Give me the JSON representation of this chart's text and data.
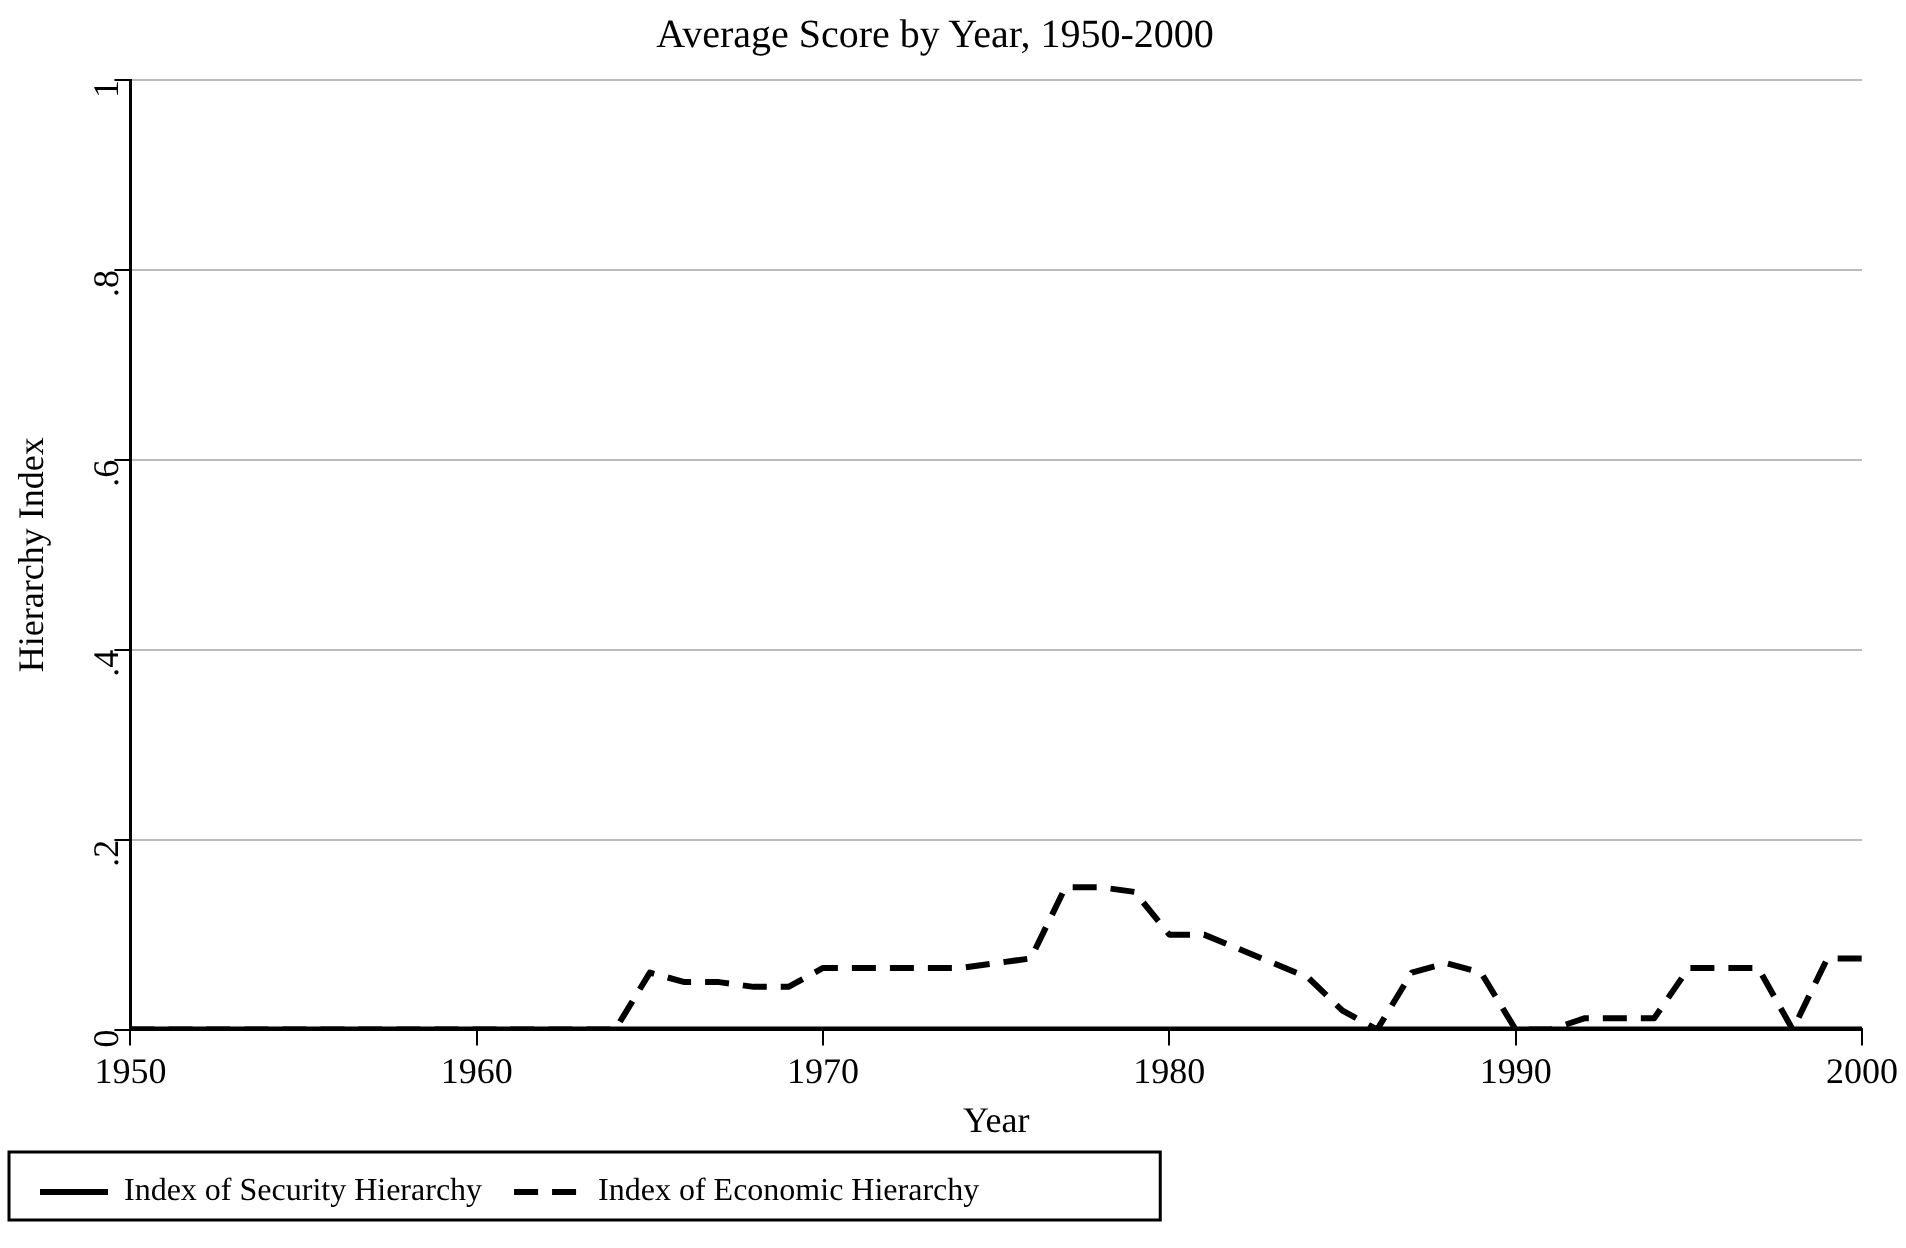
{
  "chart_data": {
    "type": "line",
    "title": "Average Score by Year, 1950-2000",
    "xlabel": "Year",
    "ylabel": "Hierarchy Index",
    "xlim": [
      1950,
      2000
    ],
    "xticks": [
      1950,
      1960,
      1970,
      1980,
      1990,
      2000
    ],
    "ylim": [
      0,
      1
    ],
    "yticks": [
      0,
      {
        "value": 0.2,
        "label": ".2"
      },
      {
        "value": 0.4,
        "label": ".4"
      },
      {
        "value": 0.6,
        "label": ".6"
      },
      {
        "value": 0.8,
        "label": ".8"
      },
      1
    ],
    "grid": "y",
    "legend": "bottom",
    "marker": "none",
    "series": [
      {
        "name": "Index of Security Hierarchy",
        "color": "#000000",
        "line_style": "solid",
        "x": [
          1950,
          2000
        ],
        "values": [
          0,
          0
        ]
      },
      {
        "name": "Index of Economic Hierarchy",
        "color": "#000000",
        "line_style": "dashed",
        "x": [
          1950,
          1951,
          1952,
          1953,
          1954,
          1955,
          1956,
          1957,
          1958,
          1959,
          1960,
          1961,
          1962,
          1963,
          1964,
          1965,
          1966,
          1967,
          1968,
          1969,
          1970,
          1971,
          1972,
          1973,
          1974,
          1975,
          1976,
          1977,
          1978,
          1979,
          1980,
          1981,
          1982,
          1983,
          1984,
          1985,
          1986,
          1987,
          1988,
          1989,
          1990,
          1991,
          1992,
          1993,
          1994,
          1995,
          1996,
          1997,
          1998,
          1999,
          2000
        ],
        "values": [
          0,
          0,
          0,
          0,
          0,
          0,
          0,
          0,
          0,
          0,
          0,
          0,
          0,
          0,
          0,
          0.06,
          0.05,
          0.05,
          0.045,
          0.045,
          0.065,
          0.065,
          0.065,
          0.065,
          0.065,
          0.07,
          0.075,
          0.15,
          0.15,
          0.145,
          0.1,
          0.1,
          0.085,
          0.07,
          0.055,
          0.02,
          0,
          0.06,
          0.07,
          0.06,
          0,
          0,
          0.012,
          0.012,
          0.012,
          0.065,
          0.065,
          0.065,
          0,
          0.075,
          0.075
        ]
      }
    ]
  }
}
